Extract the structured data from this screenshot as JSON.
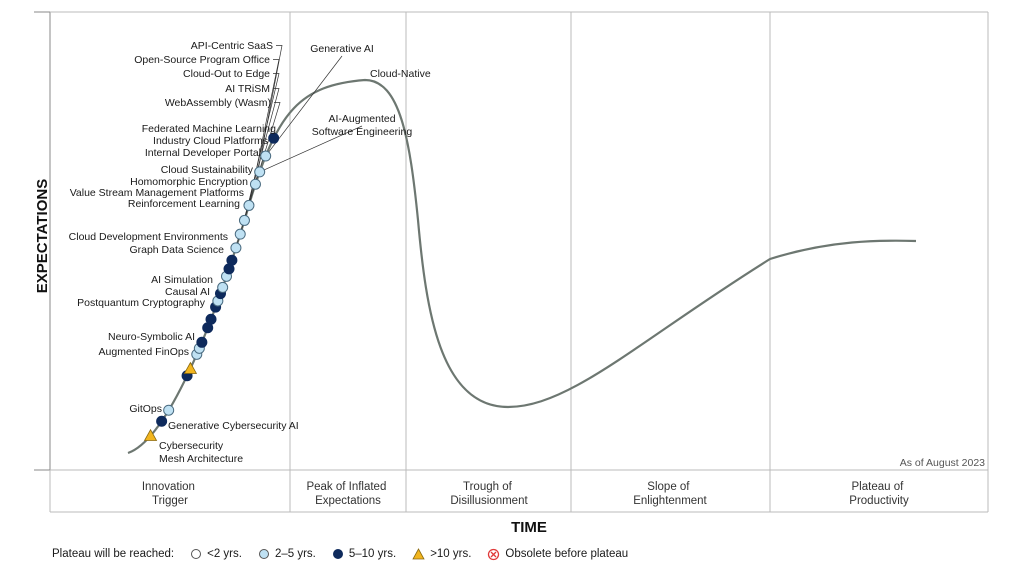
{
  "chart_data": {
    "type": "scatter",
    "title": "",
    "xlabel": "TIME",
    "ylabel": "EXPECTATIONS",
    "note": "As of August 2023",
    "phases": [
      {
        "name": "Innovation\nTrigger"
      },
      {
        "name": "Peak of Inflated\nExpectations"
      },
      {
        "name": "Trough of\nDisillusionment"
      },
      {
        "name": "Slope of\nEnlightenment"
      },
      {
        "name": "Plateau of\nProductivity"
      }
    ],
    "legend": {
      "title": "Plateau will be reached:",
      "entries": [
        {
          "key": "lt2",
          "label": "<2 yrs.",
          "color": "#ffffff"
        },
        {
          "key": "2to5",
          "label": "2–5 yrs.",
          "color": "#bfe1f3"
        },
        {
          "key": "5to10",
          "label": "5–10 yrs.",
          "color": "#0e2a5c"
        },
        {
          "key": "gt10",
          "label": ">10 yrs.",
          "color": "#f2b51e"
        },
        {
          "key": "obsolete",
          "label": "Obsolete before plateau",
          "color": "#e03a3a"
        }
      ]
    },
    "technologies": [
      {
        "name": "Cybersecurity\nMesh Architecture",
        "category": "gt10",
        "t": 0.022
      },
      {
        "name": "Generative Cybersecurity AI",
        "category": "5to10",
        "t": 0.036
      },
      {
        "name": "GitOps",
        "category": "2to5",
        "t": 0.046
      },
      {
        "name": "Augmented FinOps",
        "category": "5to10",
        "t": 0.076
      },
      {
        "name": "Neuro-Symbolic AI",
        "category": "gt10",
        "t": 0.082
      },
      {
        "name": "Postquantum Cryptography",
        "category": "2to5",
        "t": 0.094
      },
      {
        "name": "Causal AI",
        "category": "2to5",
        "t": 0.099
      },
      {
        "name": "AI Simulation",
        "category": "5to10",
        "t": 0.104
      },
      {
        "name": "Graph Data Science",
        "category": "5to10",
        "t": 0.116
      },
      {
        "name": "Cloud Development Environments",
        "category": "5to10",
        "t": 0.123
      },
      {
        "name": "Reinforcement Learning",
        "category": "5to10",
        "t": 0.133
      },
      {
        "name": "Value Stream Management Platforms",
        "category": "2to5",
        "t": 0.138
      },
      {
        "name": "Homomorphic Encryption",
        "category": "5to10",
        "t": 0.144
      },
      {
        "name": "Cloud Sustainability",
        "category": "2to5",
        "t": 0.149
      },
      {
        "name": "Internal Developer Portal",
        "category": "2to5",
        "t": 0.158
      },
      {
        "name": "Industry Cloud Platforms",
        "category": "5to10",
        "t": 0.164
      },
      {
        "name": "Federated Machine Learning",
        "category": "5to10",
        "t": 0.171
      },
      {
        "name": "WebAssembly (Wasm)",
        "category": "2to5",
        "t": 0.181
      },
      {
        "name": "AI TRiSM",
        "category": "2to5",
        "t": 0.192
      },
      {
        "name": "Cloud-Out to Edge",
        "category": "2to5",
        "t": 0.203
      },
      {
        "name": "Open-Source Program Office",
        "category": "2to5",
        "t": 0.215
      },
      {
        "name": "API-Centric SaaS",
        "category": "2to5",
        "t": 0.232
      },
      {
        "name": "AI-Augmented\nSoftware Engineering",
        "category": "2to5",
        "t": 0.242
      },
      {
        "name": "Generative AI",
        "category": "2to5",
        "t": 0.255
      },
      {
        "name": "Cloud-Native",
        "category": "5to10",
        "t": 0.27
      }
    ]
  }
}
